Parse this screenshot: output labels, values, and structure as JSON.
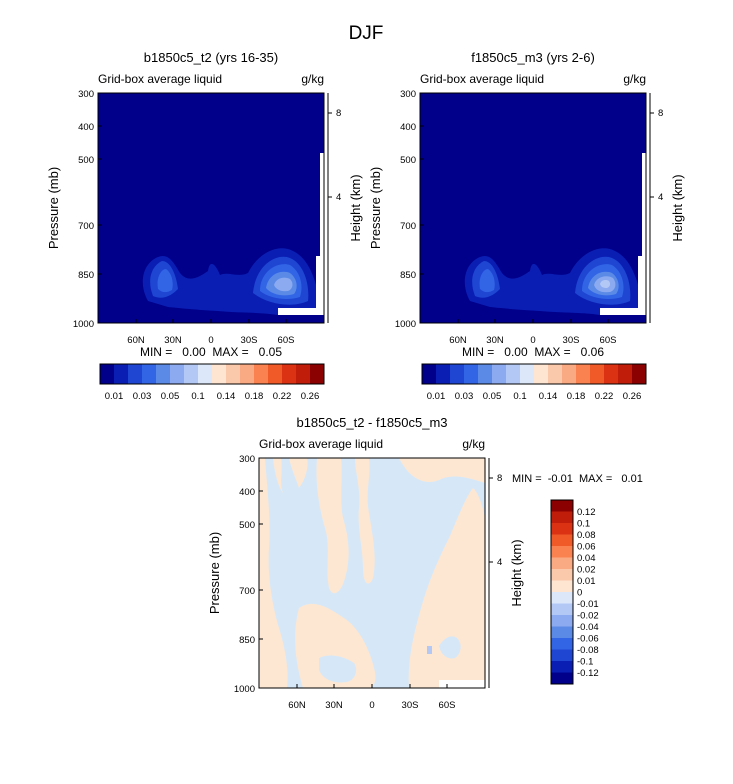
{
  "figure": {
    "title": "DJF"
  },
  "colors": {
    "background_low": "#00008b",
    "positive_contour": "#e5caa9",
    "diff_background": "#d6e8f8",
    "diff_positive": "#fde7d2",
    "mask": "#ffffff"
  },
  "chart_data": [
    {
      "type": "contour",
      "panel": "left",
      "title": "b1850c5_t2 (yrs 16-35)",
      "subtitle_left": "Grid-box average liquid",
      "subtitle_right": "g/kg",
      "ylabel": "Pressure (mb)",
      "ylabel_right": "Height (km)",
      "y_ticks": [
        "300",
        "400",
        "500",
        "700",
        "850",
        "1000"
      ],
      "y_tick_values": [
        300,
        400,
        500,
        700,
        850,
        1000
      ],
      "y_right_ticks": [
        "8",
        "4"
      ],
      "y_right_tick_values": [
        8,
        4
      ],
      "x_ticks": [
        "60N",
        "30N",
        "0",
        "30S",
        "60S"
      ],
      "x_tick_values": [
        60,
        30,
        0,
        -30,
        -60
      ],
      "xlim": [
        90,
        -90
      ],
      "ylim": [
        300,
        1000
      ],
      "stats_text": "MIN =   0.00  MAX =   0.05",
      "min": 0.0,
      "max": 0.05,
      "colorbar": {
        "orientation": "horizontal",
        "labels": [
          "0.01",
          "0.03",
          "0.05",
          "0.1",
          "0.14",
          "0.18",
          "0.22",
          "0.26"
        ],
        "colors": [
          "#00008b",
          "#0a1eb4",
          "#1e46d2",
          "#3264e6",
          "#5a8ae6",
          "#8caaf0",
          "#b4c8f5",
          "#dce8fa",
          "#fde5d2",
          "#fac8aa",
          "#faaa82",
          "#fa8250",
          "#f05a28",
          "#dc3214",
          "#c01e0a",
          "#8b0000"
        ]
      }
    },
    {
      "type": "contour",
      "panel": "right",
      "title": "f1850c5_m3 (yrs 2-6)",
      "subtitle_left": "Grid-box average liquid",
      "subtitle_right": "g/kg",
      "ylabel": "Pressure (mb)",
      "ylabel_right": "Height (km)",
      "y_ticks": [
        "300",
        "400",
        "500",
        "700",
        "850",
        "1000"
      ],
      "y_tick_values": [
        300,
        400,
        500,
        700,
        850,
        1000
      ],
      "y_right_ticks": [
        "8",
        "4"
      ],
      "y_right_tick_values": [
        8,
        4
      ],
      "x_ticks": [
        "60N",
        "30N",
        "0",
        "30S",
        "60S"
      ],
      "x_tick_values": [
        60,
        30,
        0,
        -30,
        -60
      ],
      "xlim": [
        90,
        -90
      ],
      "ylim": [
        300,
        1000
      ],
      "stats_text": "MIN =   0.00  MAX =   0.06",
      "min": 0.0,
      "max": 0.06,
      "colorbar": {
        "orientation": "horizontal",
        "labels": [
          "0.01",
          "0.03",
          "0.05",
          "0.1",
          "0.14",
          "0.18",
          "0.22",
          "0.26"
        ],
        "colors": [
          "#00008b",
          "#0a1eb4",
          "#1e46d2",
          "#3264e6",
          "#5a8ae6",
          "#8caaf0",
          "#b4c8f5",
          "#dce8fa",
          "#fde5d2",
          "#fac8aa",
          "#faaa82",
          "#fa8250",
          "#f05a28",
          "#dc3214",
          "#c01e0a",
          "#8b0000"
        ]
      }
    },
    {
      "type": "contour",
      "panel": "bottom",
      "title": "b1850c5_t2 - f1850c5_m3",
      "subtitle_left": "Grid-box average liquid",
      "subtitle_right": "g/kg",
      "ylabel": "Pressure (mb)",
      "ylabel_right": "Height (km)",
      "y_ticks": [
        "300",
        "400",
        "500",
        "700",
        "850",
        "1000"
      ],
      "y_tick_values": [
        300,
        400,
        500,
        700,
        850,
        1000
      ],
      "y_right_ticks": [
        "8",
        "4"
      ],
      "y_right_tick_values": [
        8,
        4
      ],
      "x_ticks": [
        "60N",
        "30N",
        "0",
        "30S",
        "60S"
      ],
      "x_tick_values": [
        60,
        30,
        0,
        -30,
        -60
      ],
      "xlim": [
        90,
        -90
      ],
      "ylim": [
        300,
        1000
      ],
      "stats_text": "MIN =  -0.01  MAX =   0.01",
      "min": -0.01,
      "max": 0.01,
      "colorbar": {
        "orientation": "vertical",
        "labels": [
          "0.12",
          "0.1",
          "0.08",
          "0.06",
          "0.04",
          "0.02",
          "0.01",
          "0",
          "-0.01",
          "-0.02",
          "-0.04",
          "-0.06",
          "-0.08",
          "-0.1",
          "-0.12"
        ],
        "colors": [
          "#8b0000",
          "#c01e0a",
          "#dc3214",
          "#f05a28",
          "#fa8250",
          "#faaa82",
          "#fac8aa",
          "#fde5d2",
          "#dce8fa",
          "#b4c8f5",
          "#8caaf0",
          "#5a8ae6",
          "#3264e6",
          "#1e46d2",
          "#0a1eb4",
          "#00008b"
        ]
      }
    }
  ]
}
